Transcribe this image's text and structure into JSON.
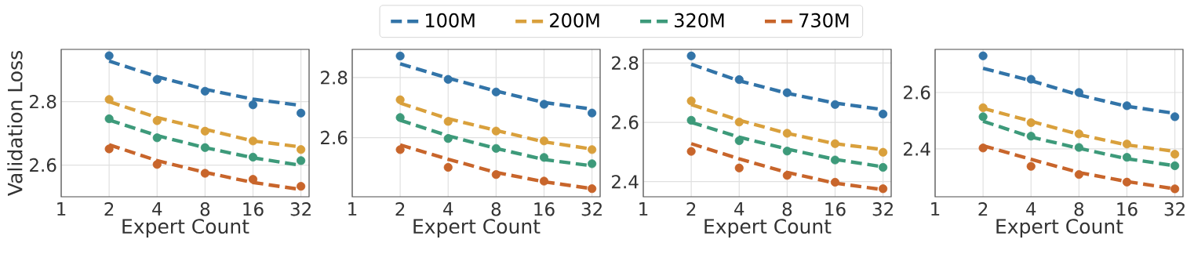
{
  "chart_data": [
    {
      "type": "line",
      "xlabel": "Expert Count",
      "ylabel": "Validation Loss",
      "log": "x",
      "grid": true,
      "xlim": [
        1,
        36
      ],
      "ylim": [
        2.5,
        2.965
      ],
      "xticks": [
        1,
        2,
        4,
        8,
        16,
        32
      ],
      "yticks": [
        2.6,
        2.8
      ],
      "x": [
        2,
        4,
        8,
        16,
        32
      ],
      "series": [
        {
          "type": "scatter",
          "color": "#3274a8",
          "values": [
            2.945,
            2.87,
            2.833,
            2.79,
            2.764
          ]
        },
        {
          "type": "scatter",
          "color": "#d9a03c",
          "values": [
            2.807,
            2.74,
            2.707,
            2.676,
            2.649
          ]
        },
        {
          "type": "scatter",
          "color": "#3d9a7a",
          "values": [
            2.746,
            2.686,
            2.655,
            2.625,
            2.614
          ]
        },
        {
          "type": "scatter",
          "color": "#c8652b",
          "values": [
            2.651,
            2.602,
            2.574,
            2.555,
            2.533
          ]
        },
        {
          "type": "line",
          "line_style": "dashed",
          "color": "#3274a8",
          "values": [
            2.928,
            2.879,
            2.839,
            2.808,
            2.788
          ]
        },
        {
          "type": "line",
          "line_style": "dashed",
          "color": "#d9a03c",
          "values": [
            2.8,
            2.75,
            2.713,
            2.676,
            2.657
          ]
        },
        {
          "type": "line",
          "line_style": "dashed",
          "color": "#3d9a7a",
          "values": [
            2.742,
            2.693,
            2.655,
            2.623,
            2.599
          ]
        },
        {
          "type": "line",
          "line_style": "dashed",
          "color": "#c8652b",
          "values": [
            2.664,
            2.614,
            2.577,
            2.545,
            2.523
          ]
        }
      ]
    },
    {
      "type": "line",
      "xlabel": "Expert Count",
      "log": "x",
      "grid": true,
      "legend": "top",
      "xlim": [
        1,
        36
      ],
      "ylim": [
        2.403,
        2.894
      ],
      "xticks": [
        1,
        2,
        4,
        8,
        16,
        32
      ],
      "yticks": [
        2.6,
        2.8
      ],
      "x": [
        2,
        4,
        8,
        16,
        32
      ],
      "series": [
        {
          "type": "scatter",
          "color": "#3274a8",
          "values": [
            2.872,
            2.794,
            2.752,
            2.711,
            2.682
          ]
        },
        {
          "type": "scatter",
          "color": "#d9a03c",
          "values": [
            2.726,
            2.654,
            2.622,
            2.589,
            2.56
          ]
        },
        {
          "type": "scatter",
          "color": "#3d9a7a",
          "values": [
            2.667,
            2.597,
            2.564,
            2.534,
            2.513
          ]
        },
        {
          "type": "scatter",
          "color": "#c8652b",
          "values": [
            2.56,
            2.501,
            2.477,
            2.455,
            2.43
          ]
        },
        {
          "type": "line",
          "name": "100M",
          "line_style": "dashed",
          "color": "#3274a8",
          "values": [
            2.846,
            2.798,
            2.755,
            2.717,
            2.695
          ]
        },
        {
          "type": "line",
          "name": "200M",
          "line_style": "dashed",
          "color": "#d9a03c",
          "values": [
            2.715,
            2.663,
            2.624,
            2.586,
            2.562
          ]
        },
        {
          "type": "line",
          "name": "320M",
          "line_style": "dashed",
          "color": "#3d9a7a",
          "values": [
            2.658,
            2.606,
            2.564,
            2.527,
            2.506
          ]
        },
        {
          "type": "line",
          "name": "730M",
          "line_style": "dashed",
          "color": "#c8652b",
          "values": [
            2.576,
            2.528,
            2.484,
            2.453,
            2.43
          ]
        }
      ]
    },
    {
      "type": "line",
      "xlabel": "Expert Count",
      "log": "x",
      "grid": true,
      "xlim": [
        1,
        36
      ],
      "ylim": [
        2.349,
        2.846
      ],
      "xticks": [
        1,
        2,
        4,
        8,
        16,
        32
      ],
      "yticks": [
        2.4,
        2.6,
        2.8
      ],
      "x": [
        2,
        4,
        8,
        16,
        32
      ],
      "series": [
        {
          "type": "scatter",
          "color": "#3274a8",
          "values": [
            2.824,
            2.744,
            2.7,
            2.66,
            2.628
          ]
        },
        {
          "type": "scatter",
          "color": "#d9a03c",
          "values": [
            2.672,
            2.601,
            2.563,
            2.528,
            2.499
          ]
        },
        {
          "type": "scatter",
          "color": "#3d9a7a",
          "values": [
            2.607,
            2.538,
            2.503,
            2.473,
            2.448
          ]
        },
        {
          "type": "scatter",
          "color": "#c8652b",
          "values": [
            2.502,
            2.446,
            2.421,
            2.398,
            2.376
          ]
        },
        {
          "type": "line",
          "line_style": "dashed",
          "color": "#3274a8",
          "values": [
            2.796,
            2.74,
            2.698,
            2.665,
            2.643
          ]
        },
        {
          "type": "line",
          "line_style": "dashed",
          "color": "#d9a03c",
          "values": [
            2.66,
            2.607,
            2.563,
            2.528,
            2.508
          ]
        },
        {
          "type": "line",
          "line_style": "dashed",
          "color": "#3d9a7a",
          "values": [
            2.6,
            2.55,
            2.51,
            2.475,
            2.45
          ]
        },
        {
          "type": "line",
          "line_style": "dashed",
          "color": "#c8652b",
          "values": [
            2.528,
            2.477,
            2.431,
            2.395,
            2.373
          ]
        }
      ]
    },
    {
      "type": "line",
      "xlabel": "Expert Count",
      "log": "x",
      "grid": true,
      "xlim": [
        1,
        36
      ],
      "ylim": [
        2.23,
        2.753
      ],
      "xticks": [
        1,
        2,
        4,
        8,
        16,
        32
      ],
      "yticks": [
        2.4,
        2.6
      ],
      "x": [
        2,
        4,
        8,
        16,
        32
      ],
      "series": [
        {
          "type": "scatter",
          "color": "#3274a8",
          "values": [
            2.73,
            2.647,
            2.6,
            2.553,
            2.514
          ]
        },
        {
          "type": "scatter",
          "color": "#d9a03c",
          "values": [
            2.546,
            2.493,
            2.453,
            2.417,
            2.381
          ]
        },
        {
          "type": "scatter",
          "color": "#3d9a7a",
          "values": [
            2.514,
            2.445,
            2.405,
            2.37,
            2.34
          ]
        },
        {
          "type": "scatter",
          "color": "#c8652b",
          "values": [
            2.403,
            2.338,
            2.309,
            2.282,
            2.258
          ]
        },
        {
          "type": "line",
          "line_style": "dashed",
          "color": "#3274a8",
          "values": [
            2.686,
            2.642,
            2.591,
            2.551,
            2.526
          ]
        },
        {
          "type": "line",
          "line_style": "dashed",
          "color": "#d9a03c",
          "values": [
            2.544,
            2.498,
            2.451,
            2.414,
            2.391
          ]
        },
        {
          "type": "line",
          "line_style": "dashed",
          "color": "#3d9a7a",
          "values": [
            2.498,
            2.442,
            2.402,
            2.365,
            2.34
          ]
        },
        {
          "type": "line",
          "line_style": "dashed",
          "color": "#c8652b",
          "values": [
            2.411,
            2.363,
            2.316,
            2.284,
            2.258
          ]
        }
      ]
    }
  ]
}
